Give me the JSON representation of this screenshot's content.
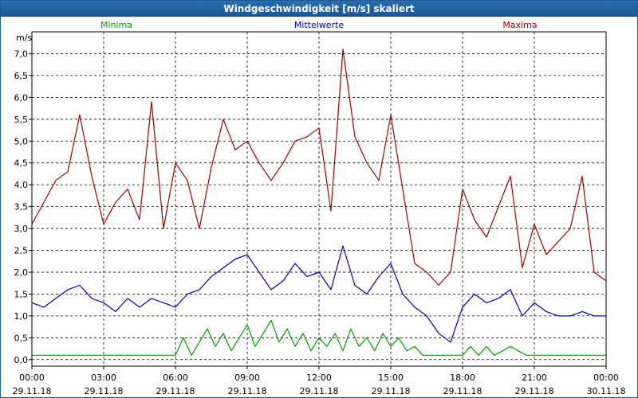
{
  "window": {
    "title": "Windgeschwindigkeit [m/s] skaliert"
  },
  "colors": {
    "minima": "#00a000",
    "mittelwerte": "#0000b0",
    "maxima": "#a00000",
    "title_bg": "#1f5f9f"
  },
  "chart_data": {
    "type": "line",
    "title": "Windgeschwindigkeit [m/s] skaliert",
    "ylabel": "m/s",
    "xlabel": "",
    "ylim": [
      -0.15,
      7.5
    ],
    "y_ticks": [
      "0,0",
      "0,5",
      "1,0",
      "1,5",
      "2,0",
      "2,5",
      "3,0",
      "3,5",
      "4,0",
      "4,5",
      "5,0",
      "5,5",
      "6,0",
      "6,5",
      "7,0"
    ],
    "x_range": [
      "29.11.18 00:00",
      "30.11.18 00:00"
    ],
    "x_ticks": [
      {
        "time": "00:00",
        "date": "29.11.18"
      },
      {
        "time": "03:00",
        "date": "29.11.18"
      },
      {
        "time": "06:00",
        "date": "29.11.18"
      },
      {
        "time": "09:00",
        "date": "29.11.18"
      },
      {
        "time": "12:00",
        "date": "29.11.18"
      },
      {
        "time": "15:00",
        "date": "29.11.18"
      },
      {
        "time": "18:00",
        "date": "29.11.18"
      },
      {
        "time": "21:00",
        "date": "29.11.18"
      },
      {
        "time": "00:00",
        "date": "30.11.18"
      }
    ],
    "grid": true,
    "legend_placement": "top",
    "series": [
      {
        "name": "Minima",
        "x_hours": [
          0,
          6,
          6.33,
          6.67,
          7,
          7.33,
          7.67,
          8,
          8.33,
          8.67,
          9,
          9.33,
          9.67,
          10,
          10.33,
          10.67,
          11,
          11.33,
          11.67,
          12,
          12.33,
          12.67,
          13,
          13.33,
          13.67,
          14,
          14.33,
          14.67,
          15,
          15.33,
          15.67,
          16,
          16.33,
          16.67,
          17,
          17.33,
          17.67,
          18,
          18.33,
          18.67,
          19,
          19.33,
          19.67,
          20,
          20.33,
          20.67,
          21,
          21.33,
          24
        ],
        "y": [
          0.1,
          0.1,
          0.5,
          0.1,
          0.4,
          0.7,
          0.3,
          0.6,
          0.2,
          0.5,
          0.8,
          0.3,
          0.6,
          0.9,
          0.4,
          0.7,
          0.3,
          0.6,
          0.2,
          0.5,
          0.3,
          0.6,
          0.2,
          0.7,
          0.3,
          0.5,
          0.2,
          0.6,
          0.3,
          0.5,
          0.2,
          0.3,
          0.1,
          0.1,
          0.1,
          0.1,
          0.1,
          0.1,
          0.3,
          0.1,
          0.3,
          0.1,
          0.2,
          0.3,
          0.2,
          0.1,
          0.1,
          0.1,
          0.1
        ]
      },
      {
        "name": "Mittelwerte",
        "x_hours": [
          0,
          0.5,
          1,
          1.5,
          2,
          2.5,
          3,
          3.5,
          4,
          4.5,
          5,
          5.5,
          6,
          6.5,
          7,
          7.5,
          8,
          8.5,
          9,
          9.5,
          10,
          10.5,
          11,
          11.5,
          12,
          12.5,
          13,
          13.5,
          14,
          14.5,
          15,
          15.5,
          16,
          16.5,
          17,
          17.5,
          18,
          18.5,
          19,
          19.5,
          20,
          20.5,
          21,
          21.5,
          22,
          22.5,
          23,
          23.5,
          24
        ],
        "y": [
          1.3,
          1.2,
          1.4,
          1.6,
          1.7,
          1.4,
          1.3,
          1.1,
          1.4,
          1.2,
          1.4,
          1.3,
          1.2,
          1.5,
          1.6,
          1.9,
          2.1,
          2.3,
          2.4,
          2.0,
          1.6,
          1.8,
          2.2,
          1.9,
          2.0,
          1.6,
          2.6,
          1.7,
          1.5,
          1.9,
          2.2,
          1.5,
          1.2,
          1.0,
          0.6,
          0.4,
          1.2,
          1.5,
          1.3,
          1.4,
          1.6,
          1.0,
          1.3,
          1.1,
          1.0,
          1.0,
          1.1,
          1.0,
          1.0
        ]
      },
      {
        "name": "Maxima",
        "x_hours": [
          0,
          0.5,
          1,
          1.5,
          2,
          2.5,
          3,
          3.5,
          4,
          4.5,
          5,
          5.5,
          6,
          6.5,
          7,
          7.5,
          8,
          8.5,
          9,
          9.5,
          10,
          10.5,
          11,
          11.5,
          12,
          12.5,
          13,
          13.5,
          14,
          14.5,
          15,
          15.5,
          16,
          16.5,
          17,
          17.5,
          18,
          18.5,
          19,
          19.5,
          20,
          20.5,
          21,
          21.5,
          22,
          22.5,
          23,
          23.5,
          24
        ],
        "y": [
          3.1,
          3.6,
          4.1,
          4.3,
          5.6,
          4.2,
          3.1,
          3.6,
          3.9,
          3.2,
          5.9,
          3.0,
          4.5,
          4.1,
          3.0,
          4.4,
          5.5,
          4.8,
          5.0,
          4.5,
          4.1,
          4.5,
          5.0,
          5.1,
          5.3,
          3.4,
          7.1,
          5.1,
          4.5,
          4.1,
          5.6,
          3.9,
          2.2,
          2.0,
          1.7,
          2.0,
          3.9,
          3.2,
          2.8,
          3.5,
          4.2,
          2.1,
          3.1,
          2.4,
          2.7,
          3.0,
          4.2,
          2.0,
          1.8
        ]
      }
    ]
  }
}
